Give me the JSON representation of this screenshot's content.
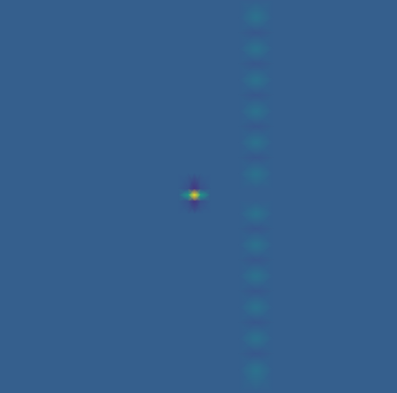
{
  "chart_data": {
    "type": "heatmap",
    "color": "viridis",
    "tick_labels": false,
    "value_range": [
      0,
      1
    ],
    "xlim": [
      0,
      445
    ],
    "ylim": [
      441,
      0
    ],
    "x": [
      0,
      200,
      211,
      218,
      225,
      236,
      268,
      287,
      306,
      445
    ],
    "y": [
      0,
      20,
      37,
      55,
      72,
      90,
      107,
      125,
      142,
      160,
      177,
      195,
      212,
      219,
      226,
      240,
      257,
      275,
      292,
      310,
      327,
      345,
      362,
      380,
      397,
      415,
      441
    ],
    "cells": [
      [
        0.3,
        0.3,
        0.3,
        0.3,
        0.3,
        0.3,
        0.3,
        0.3,
        0.3,
        0.3
      ],
      [
        0.3,
        0.3,
        0.3,
        0.3,
        0.3,
        0.3,
        0.3,
        0.38,
        0.3,
        0.3
      ],
      [
        0.3,
        0.3,
        0.3,
        0.3,
        0.3,
        0.3,
        0.3,
        0.27,
        0.3,
        0.3
      ],
      [
        0.3,
        0.3,
        0.3,
        0.3,
        0.3,
        0.3,
        0.3,
        0.38,
        0.3,
        0.3
      ],
      [
        0.3,
        0.3,
        0.3,
        0.3,
        0.3,
        0.3,
        0.3,
        0.27,
        0.3,
        0.3
      ],
      [
        0.3,
        0.3,
        0.3,
        0.3,
        0.3,
        0.3,
        0.3,
        0.38,
        0.3,
        0.3
      ],
      [
        0.3,
        0.3,
        0.3,
        0.3,
        0.3,
        0.3,
        0.3,
        0.27,
        0.3,
        0.3
      ],
      [
        0.3,
        0.3,
        0.3,
        0.3,
        0.3,
        0.3,
        0.3,
        0.38,
        0.3,
        0.3
      ],
      [
        0.3,
        0.3,
        0.3,
        0.3,
        0.3,
        0.3,
        0.3,
        0.27,
        0.3,
        0.3
      ],
      [
        0.3,
        0.3,
        0.3,
        0.3,
        0.3,
        0.3,
        0.3,
        0.38,
        0.3,
        0.3
      ],
      [
        0.3,
        0.3,
        0.3,
        0.3,
        0.3,
        0.3,
        0.3,
        0.27,
        0.3,
        0.3
      ],
      [
        0.3,
        0.3,
        0.3,
        0.3,
        0.3,
        0.3,
        0.3,
        0.38,
        0.3,
        0.3
      ],
      [
        0.3,
        0.3,
        0.25,
        0.15,
        0.25,
        0.3,
        0.3,
        0.3,
        0.3,
        0.3
      ],
      [
        0.3,
        0.3,
        0.55,
        1.0,
        0.55,
        0.3,
        0.3,
        0.3,
        0.3,
        0.3
      ],
      [
        0.3,
        0.3,
        0.25,
        0.15,
        0.25,
        0.3,
        0.3,
        0.3,
        0.3,
        0.3
      ],
      [
        0.3,
        0.3,
        0.3,
        0.3,
        0.3,
        0.3,
        0.3,
        0.38,
        0.3,
        0.3
      ],
      [
        0.3,
        0.3,
        0.3,
        0.3,
        0.3,
        0.3,
        0.3,
        0.27,
        0.3,
        0.3
      ],
      [
        0.3,
        0.3,
        0.3,
        0.3,
        0.3,
        0.3,
        0.3,
        0.38,
        0.3,
        0.3
      ],
      [
        0.3,
        0.3,
        0.3,
        0.3,
        0.3,
        0.3,
        0.3,
        0.27,
        0.3,
        0.3
      ],
      [
        0.3,
        0.3,
        0.3,
        0.3,
        0.3,
        0.3,
        0.3,
        0.38,
        0.3,
        0.3
      ],
      [
        0.3,
        0.3,
        0.3,
        0.3,
        0.3,
        0.3,
        0.3,
        0.27,
        0.3,
        0.3
      ],
      [
        0.3,
        0.3,
        0.3,
        0.3,
        0.3,
        0.3,
        0.3,
        0.38,
        0.3,
        0.3
      ],
      [
        0.3,
        0.3,
        0.3,
        0.3,
        0.3,
        0.3,
        0.3,
        0.27,
        0.3,
        0.3
      ],
      [
        0.3,
        0.3,
        0.3,
        0.3,
        0.3,
        0.3,
        0.3,
        0.38,
        0.3,
        0.3
      ],
      [
        0.3,
        0.3,
        0.3,
        0.3,
        0.3,
        0.3,
        0.3,
        0.27,
        0.3,
        0.3
      ],
      [
        0.3,
        0.3,
        0.3,
        0.3,
        0.3,
        0.3,
        0.3,
        0.38,
        0.3,
        0.3
      ],
      [
        0.3,
        0.3,
        0.3,
        0.3,
        0.3,
        0.3,
        0.3,
        0.3,
        0.3,
        0.3
      ]
    ]
  }
}
